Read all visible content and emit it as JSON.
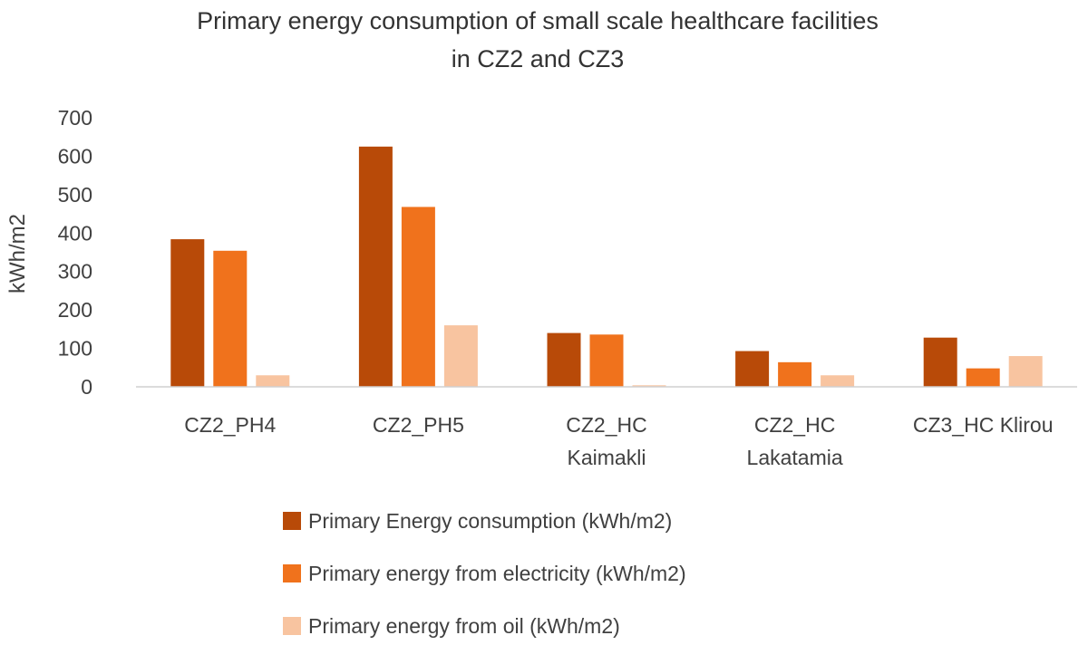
{
  "chart_data": {
    "type": "bar",
    "title_lines": [
      "Primary energy consumption of small scale healthcare facilities",
      "in CZ2 and CZ3"
    ],
    "xlabel": "",
    "ylabel": "kWh/m2",
    "ylim": [
      0,
      700
    ],
    "yticks": [
      "0",
      "100",
      "200",
      "300",
      "400",
      "500",
      "600",
      "700"
    ],
    "grid": false,
    "legend_position": "bottom",
    "categories": [
      [
        "CZ2_PH4"
      ],
      [
        "CZ2_PH5"
      ],
      [
        "CZ2_HC",
        "Kaimakli"
      ],
      [
        "CZ2_HC",
        "Lakatamia"
      ],
      [
        "CZ3_HC Klirou"
      ]
    ],
    "series": [
      {
        "name": "Primary Energy consumption  (kWh/m2)",
        "color": "#b84a08",
        "values": [
          384,
          625,
          140,
          93,
          128
        ]
      },
      {
        "name": "Primary energy from electricity (kWh/m2)",
        "color": "#f0721c",
        "values": [
          354,
          468,
          136,
          64,
          48
        ]
      },
      {
        "name": "Primary energy from oil (kWh/m2)",
        "color": "#f8c4a0",
        "values": [
          30,
          160,
          4,
          30,
          80
        ]
      }
    ]
  }
}
